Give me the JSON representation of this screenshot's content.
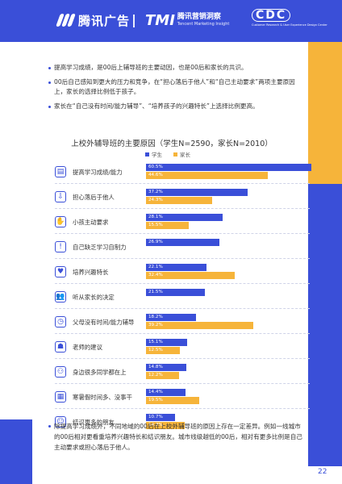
{
  "header": {
    "brand1": "腾讯广告",
    "brand2_mark": "TMI",
    "brand2_title": "腾讯营销洞察",
    "brand2_sub": "Tencent Marketing Insight",
    "brand3_mark": "CDC",
    "brand3_sub": "Customer Research & User Experience Design Center"
  },
  "bullets": [
    "提高学习成绩，是00后上辅导班的主要动因，也是00后和家长的共识。",
    "00后自己感知到更大的压力和竞争，在“担心落后于他人”和“自己主动要求”两项主要原因上，家长的选择比例低于孩子。",
    "家长在“自己没有时间/能力辅导”、“培养孩子的兴趣特长”上选择比例更高。"
  ],
  "chart_data": {
    "type": "bar",
    "title": "上校外辅导班的主要原因（学生N=2590，家长N=2010）",
    "series": [
      {
        "name": "学生",
        "color": "#3a4fd8",
        "values": [
          60.5,
          37.2,
          28.1,
          26.9,
          22.1,
          21.5,
          18.2,
          15.1,
          14.8,
          14.4,
          10.7
        ]
      },
      {
        "name": "家长",
        "color": "#f6b43a",
        "values": [
          44.6,
          24.3,
          15.5,
          null,
          32.4,
          null,
          39.2,
          12.5,
          12.2,
          19.5,
          14.3
        ]
      }
    ],
    "categories": [
      "提高学习成绩/能力",
      "担心落后于他人",
      "小孩主动要求",
      "自己缺乏学习自制力",
      "培养兴趣特长",
      "听从家长的决定",
      "父母没有时间/能力辅导",
      "老师的建议",
      "身边很多同学都在上",
      "寒暑假时间多、没事干",
      "结识更多的朋友"
    ],
    "value_labels": {
      "student": [
        "60.5%",
        "37.2%",
        "28.1%",
        "26.9%",
        "22.1%",
        "21.5%",
        "18.2%",
        "15.1%",
        "14.8%",
        "14.4%",
        "10.7%"
      ],
      "parent": [
        "44.6%",
        "24.3%",
        "15.5%",
        "",
        "32.4%",
        "",
        "39.2%",
        "12.5%",
        "12.2%",
        "19.5%",
        "14.3%"
      ]
    },
    "xlim": [
      0,
      60.5
    ],
    "icons": [
      "book-icon",
      "arrow-down-icon",
      "hand-icon",
      "alert-icon",
      "heart-hand-icon",
      "people-icon",
      "clock-icon",
      "teacher-icon",
      "group-icon",
      "calendar-icon",
      "friends-icon"
    ],
    "icon_glyphs": [
      "▤",
      "⇩",
      "✋",
      "!",
      "♥",
      "👥",
      "◷",
      "☗",
      "⚇",
      "▦",
      "☺"
    ]
  },
  "footer": "除提高学习成绩外，不同地域的00后在上校外辅导班的原因上存在一定差异。例如一线城市的00后相对更看重培养兴趣特长和结识朋友。城市线级越低的00后，相对有更多比例是自己主动要求或担心落后于他人。",
  "page_number": "22"
}
